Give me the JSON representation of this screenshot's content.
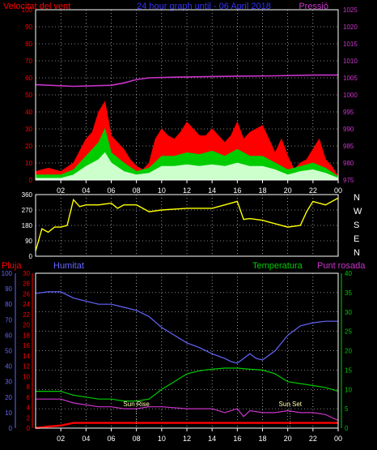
{
  "header": {
    "left_title": "Velocitat del vent",
    "center_title": "24 hour graph until - 06 April 2018",
    "right_title": "Pressió"
  },
  "lower_header": {
    "rain": "Pluja",
    "humidity": "Humitat",
    "temperature": "Temperatura",
    "dewpoint": "Punt rosada"
  },
  "markers": {
    "sunrise": "Sun Rise",
    "sunset": "Sun Set"
  },
  "compass": [
    "N",
    "W",
    "S",
    "E",
    "N"
  ],
  "colors": {
    "wind_peak": "#ff0000",
    "wind_avg": "#00cc00",
    "wind_min": "#ccffcc",
    "pressure": "#cc33cc",
    "direction": "#ffff00",
    "humidity": "#6666ff",
    "temperature": "#00cc00",
    "dewpoint": "#cc33cc",
    "rain": "#ff0000",
    "grid": "#ffffff",
    "axis": "#ffffff"
  },
  "chart_data": [
    {
      "type": "line",
      "title": "Velocitat del vent",
      "y_axis_left": {
        "label": "Velocitat del vent",
        "ticks": [
          0,
          10,
          20,
          30,
          40,
          50,
          60,
          70,
          80,
          90,
          100
        ],
        "range": [
          0,
          100
        ]
      },
      "y_axis_right": {
        "label": "Pressió",
        "ticks": [
          975,
          980,
          985,
          990,
          995,
          1000,
          1005,
          1010,
          1015,
          1020,
          1025
        ],
        "range": [
          975,
          1025
        ]
      },
      "x_ticks": [
        "02",
        "04",
        "06",
        "08",
        "10",
        "12",
        "14",
        "16",
        "18",
        "20",
        "22",
        "00"
      ],
      "x_range_hours": [
        0,
        24
      ],
      "series": [
        {
          "name": "Pressió",
          "axis": "right",
          "x": [
            0,
            3,
            6,
            7,
            8,
            9,
            11,
            13,
            16,
            19,
            22,
            24
          ],
          "values": [
            1003,
            1002.5,
            1002.8,
            1003.5,
            1004.5,
            1005,
            1005.2,
            1005.3,
            1005.5,
            1005.6,
            1005.8,
            1005.8
          ]
        },
        {
          "axis": "left",
          "x": [
            0,
            1,
            2,
            3,
            4,
            4.5,
            5,
            5.5,
            6,
            6.5,
            7,
            7.5,
            8,
            8.5,
            9,
            9.5,
            10,
            10.5,
            11,
            11.5,
            12,
            12.5,
            13,
            13.5,
            14,
            14.5,
            15,
            15.5,
            16,
            16.5,
            17,
            17.5,
            18,
            18.5,
            19,
            19.5,
            20,
            20.5,
            21,
            21.5,
            22,
            22.5,
            23,
            23.5,
            24
          ],
          "values": [
            5,
            7,
            5,
            10,
            24,
            28,
            40,
            46,
            26,
            22,
            18,
            12,
            8,
            6,
            10,
            24,
            30,
            26,
            24,
            28,
            34,
            30,
            26,
            26,
            30,
            26,
            22,
            26,
            34,
            24,
            28,
            30,
            32,
            24,
            16,
            24,
            14,
            6,
            10,
            12,
            18,
            24,
            12,
            8,
            2
          ]
        },
        {
          "axis": "left",
          "x": [
            0,
            2,
            3,
            4,
            5,
            5.5,
            6,
            7,
            8,
            9,
            10,
            11,
            12,
            13,
            14,
            15,
            16,
            17,
            18,
            19,
            20,
            21,
            22,
            23,
            24
          ],
          "values": [
            3,
            3,
            6,
            14,
            22,
            30,
            16,
            10,
            5,
            7,
            14,
            14,
            16,
            15,
            17,
            14,
            18,
            14,
            14,
            10,
            6,
            8,
            10,
            7,
            2
          ]
        },
        {
          "axis": "left",
          "x": [
            0,
            2,
            3,
            4,
            5,
            5.5,
            6,
            7,
            8,
            9,
            10,
            11,
            12,
            13,
            14,
            15,
            16,
            17,
            18,
            19,
            20,
            21,
            22,
            23,
            24
          ],
          "values": [
            1,
            1,
            3,
            8,
            12,
            16,
            10,
            5,
            3,
            4,
            8,
            8,
            9,
            8,
            9,
            8,
            10,
            8,
            8,
            6,
            3,
            5,
            6,
            4,
            1
          ]
        }
      ]
    },
    {
      "type": "line",
      "y_axis_left": {
        "ticks": [
          0,
          90,
          180,
          270,
          360
        ],
        "range": [
          0,
          360
        ]
      },
      "x_range_hours": [
        0,
        24
      ],
      "series": [
        {
          "axis": "left",
          "x": [
            0,
            0.5,
            1,
            1.5,
            2,
            2.5,
            3,
            3.5,
            4,
            5,
            6,
            6.5,
            7,
            8,
            9,
            10,
            12,
            14,
            15,
            16,
            16.5,
            17,
            18,
            19,
            20,
            21,
            21.5,
            22,
            23,
            24
          ],
          "values": [
            30,
            160,
            140,
            170,
            170,
            180,
            330,
            290,
            300,
            300,
            310,
            280,
            300,
            300,
            260,
            270,
            280,
            280,
            300,
            320,
            215,
            220,
            210,
            190,
            170,
            180,
            260,
            320,
            300,
            340
          ]
        }
      ]
    },
    {
      "type": "line",
      "y_axis_left": {
        "label": "Humitat",
        "ticks": [
          0,
          10,
          20,
          30,
          40,
          50,
          60,
          70,
          80,
          90,
          100
        ],
        "range": [
          0,
          100
        ]
      },
      "y_axis_left_inner": {
        "label": "Pluja",
        "ticks": [
          0,
          2,
          4,
          6,
          8,
          10,
          12,
          14,
          16,
          18,
          20,
          22,
          24,
          26,
          28,
          30
        ],
        "range": [
          0,
          30
        ]
      },
      "y_axis_right": {
        "label": "Temperatura / Punt rosada",
        "ticks": [
          0,
          5,
          10,
          15,
          20,
          25,
          30,
          35,
          40
        ],
        "range": [
          0,
          40
        ]
      },
      "x_ticks": [
        "02",
        "04",
        "06",
        "08",
        "10",
        "12",
        "14",
        "16",
        "18",
        "20",
        "22",
        "00"
      ],
      "x_range_hours": [
        0,
        24
      ],
      "markers": [
        {
          "label": "Sun Rise",
          "x": 8
        },
        {
          "label": "Sun Set",
          "x": 20.2
        }
      ],
      "series": [
        {
          "name": "Humitat",
          "axis": "left",
          "x": [
            0,
            1,
            2,
            3,
            4,
            5,
            6,
            7,
            8,
            9,
            10,
            11,
            12,
            13,
            14,
            15,
            15.5,
            16,
            16.5,
            17,
            17.5,
            18,
            19,
            20,
            21,
            22,
            23,
            24
          ],
          "values": [
            87,
            88,
            88,
            84,
            82,
            80,
            80,
            78,
            76,
            72,
            65,
            60,
            55,
            52,
            48,
            45,
            43,
            42,
            45,
            48,
            45,
            44,
            50,
            60,
            66,
            68,
            69,
            69
          ]
        },
        {
          "name": "Temperatura",
          "axis": "right",
          "x": [
            0,
            1,
            2,
            3,
            4,
            5,
            6,
            7,
            8,
            9,
            10,
            11,
            12,
            13,
            14,
            15,
            16,
            17,
            18,
            19,
            20,
            21,
            22,
            23,
            24
          ],
          "values": [
            9.5,
            9.5,
            9.5,
            8.5,
            8,
            7.5,
            7.5,
            7,
            7,
            7.5,
            10,
            12,
            14,
            14.8,
            15.2,
            15.5,
            15.5,
            15.2,
            15,
            14,
            12,
            11.5,
            11,
            10.5,
            9.5
          ]
        },
        {
          "name": "Punt rosada",
          "axis": "right",
          "x": [
            0,
            1,
            2,
            3,
            4,
            5,
            6,
            7,
            8,
            9,
            10,
            12,
            14,
            15,
            16,
            16.5,
            17,
            18,
            19,
            20,
            21,
            22,
            23,
            24
          ],
          "values": [
            7.5,
            7.5,
            7.5,
            6.5,
            6,
            5.5,
            5.5,
            5,
            5,
            5.5,
            5.5,
            5,
            5,
            4,
            5,
            3,
            4.5,
            4,
            4,
            4.5,
            4,
            4,
            3.5,
            2
          ]
        },
        {
          "name": "Pluja",
          "axis": "left_inner",
          "x": [
            0,
            1,
            2,
            3,
            24
          ],
          "values": [
            0,
            0.3,
            0.5,
            1,
            1
          ]
        }
      ]
    }
  ]
}
